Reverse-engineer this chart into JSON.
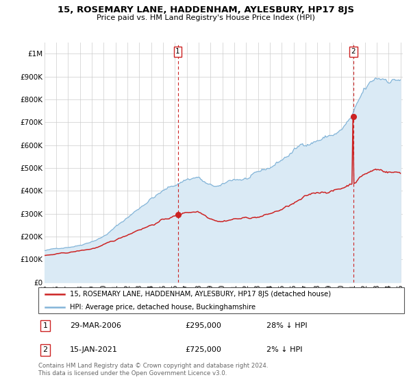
{
  "title": "15, ROSEMARY LANE, HADDENHAM, AYLESBURY, HP17 8JS",
  "subtitle": "Price paid vs. HM Land Registry's House Price Index (HPI)",
  "footer": "Contains HM Land Registry data © Crown copyright and database right 2024.\nThis data is licensed under the Open Government Licence v3.0.",
  "legend_line1": "15, ROSEMARY LANE, HADDENHAM, AYLESBURY, HP17 8JS (detached house)",
  "legend_line2": "HPI: Average price, detached house, Buckinghamshire",
  "annotation1": {
    "label": "1",
    "date": "29-MAR-2006",
    "price": "£295,000",
    "hpi": "28% ↓ HPI"
  },
  "annotation2": {
    "label": "2",
    "date": "15-JAN-2021",
    "price": "£725,000",
    "hpi": "2% ↓ HPI"
  },
  "hpi_color": "#82b4d8",
  "hpi_fill_color": "#daeaf5",
  "price_color": "#cc2222",
  "annotation_color": "#cc2222",
  "vline_color": "#cc2222",
  "ylim": [
    0,
    1050000
  ],
  "yticks": [
    0,
    100000,
    200000,
    300000,
    400000,
    500000,
    600000,
    700000,
    800000,
    900000,
    1000000
  ],
  "ytick_labels": [
    "£0",
    "£100K",
    "£200K",
    "£300K",
    "£400K",
    "£500K",
    "£600K",
    "£700K",
    "£800K",
    "£900K",
    "£1M"
  ],
  "xlim_start": 1995.0,
  "xlim_end": 2025.2,
  "marker1_x": 2006.24,
  "marker1_y": 295000,
  "marker2_x": 2021.04,
  "marker2_y": 725000,
  "vline1_x": 2006.24,
  "vline2_x": 2021.04
}
